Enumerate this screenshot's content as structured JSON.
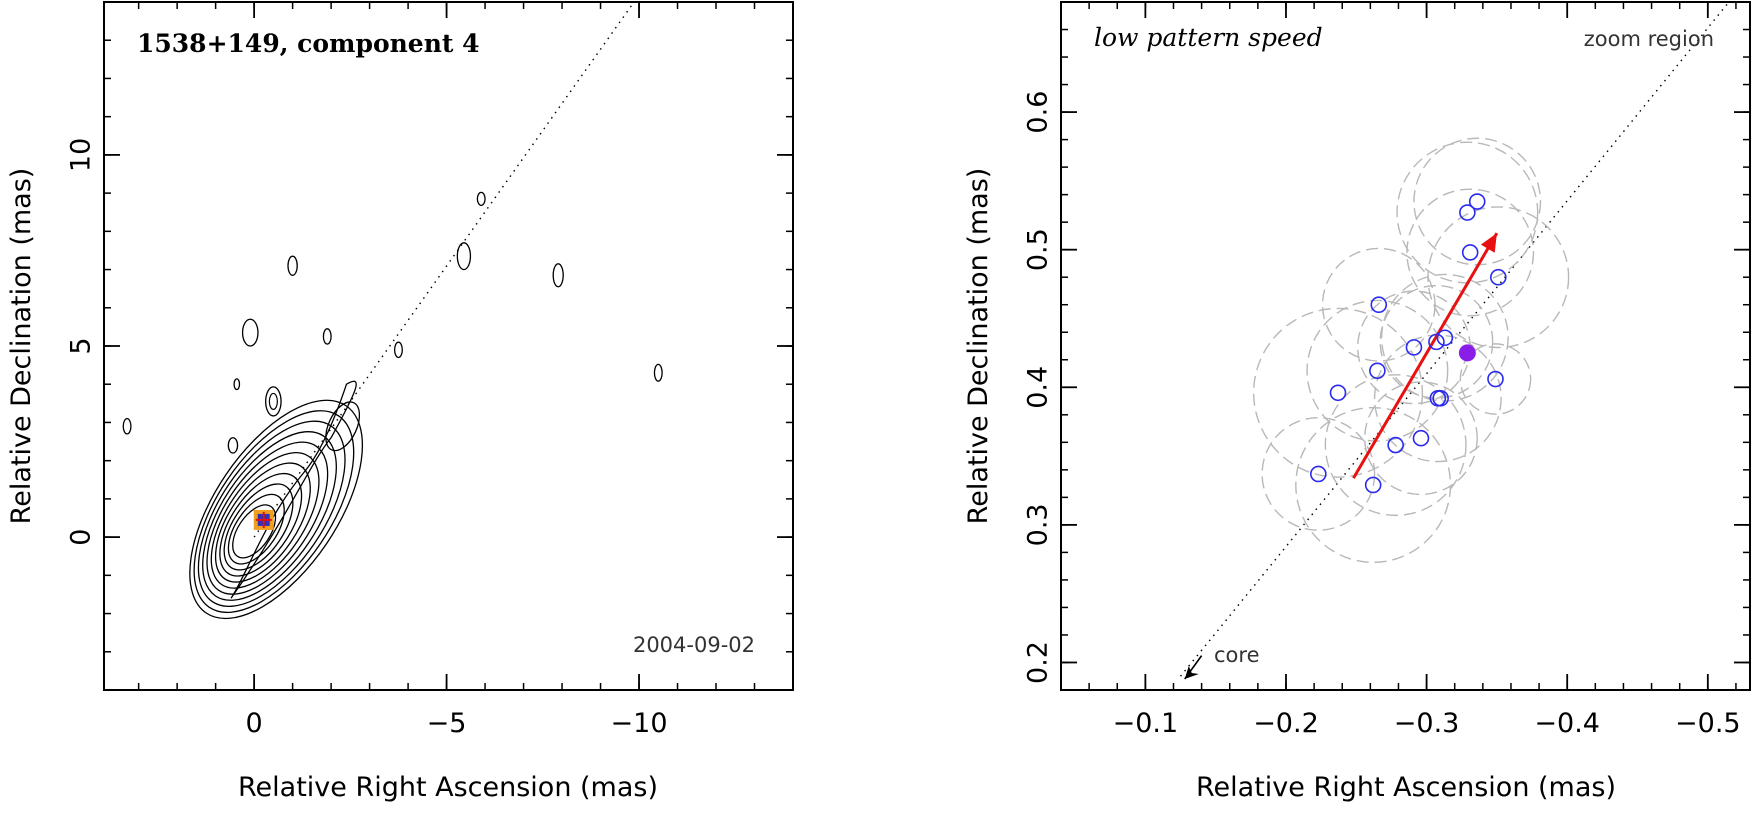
{
  "chart_data": [
    {
      "type": "contour",
      "title": "1538+149, component 4",
      "date": "2004-09-02",
      "xlabel": "Relative Right Ascension (mas)",
      "ylabel": "Relative Declination (mas)",
      "xlim": [
        3.9,
        -14.0
      ],
      "ylim": [
        -4.0,
        14.0
      ],
      "xticks": [
        0,
        -5,
        -10
      ],
      "xtick_labels": [
        "0",
        "−5",
        "−10"
      ],
      "yticks": [
        0,
        5,
        10
      ],
      "ytick_labels": [
        "0",
        "5",
        "10"
      ],
      "jet_axis": {
        "x": [
          0,
          -9.8
        ],
        "y": [
          0,
          13.9
        ]
      },
      "component_marker": {
        "x": -0.25,
        "y": 0.45
      },
      "main_contour_levels": 11,
      "blobs": [
        {
          "x": -0.5,
          "y": 3.55,
          "rx": 0.2,
          "ry": 0.38
        },
        {
          "x": 0.1,
          "y": 5.35,
          "rx": 0.2,
          "ry": 0.35
        },
        {
          "x": -1.9,
          "y": 5.25,
          "rx": 0.1,
          "ry": 0.2
        },
        {
          "x": -3.75,
          "y": 4.9,
          "rx": 0.1,
          "ry": 0.2
        },
        {
          "x": -5.45,
          "y": 7.35,
          "rx": 0.17,
          "ry": 0.35
        },
        {
          "x": -5.9,
          "y": 8.85,
          "rx": 0.1,
          "ry": 0.17
        },
        {
          "x": -7.9,
          "y": 6.85,
          "rx": 0.13,
          "ry": 0.3
        },
        {
          "x": -1.0,
          "y": 7.1,
          "rx": 0.12,
          "ry": 0.25
        },
        {
          "x": -10.5,
          "y": 4.3,
          "rx": 0.1,
          "ry": 0.22
        },
        {
          "x": 0.55,
          "y": 2.4,
          "rx": 0.12,
          "ry": 0.2
        },
        {
          "x": 3.3,
          "y": 2.9,
          "rx": 0.1,
          "ry": 0.2
        },
        {
          "x": 0.45,
          "y": 4.0,
          "rx": 0.07,
          "ry": 0.14
        }
      ]
    },
    {
      "type": "scatter",
      "title": "low pattern speed",
      "annotation_top_right": "zoom region",
      "annotation_core": "core",
      "xlabel": "Relative Right Ascension (mas)",
      "ylabel": "Relative Declination (mas)",
      "xlim": [
        -0.04,
        -0.53
      ],
      "ylim": [
        0.18,
        0.68
      ],
      "xticks": [
        -0.1,
        -0.2,
        -0.3,
        -0.4,
        -0.5
      ],
      "xtick_labels": [
        "−0.1",
        "−0.2",
        "−0.3",
        "−0.4",
        "−0.5"
      ],
      "yticks": [
        0.2,
        0.3,
        0.4,
        0.5,
        0.6
      ],
      "ytick_labels": [
        "0.2",
        "0.3",
        "0.4",
        "0.5",
        "0.6"
      ],
      "points": [
        {
          "x": -0.329,
          "y": 0.527
        },
        {
          "x": -0.336,
          "y": 0.535
        },
        {
          "x": -0.331,
          "y": 0.498
        },
        {
          "x": -0.351,
          "y": 0.48
        },
        {
          "x": -0.266,
          "y": 0.46
        },
        {
          "x": -0.313,
          "y": 0.436
        },
        {
          "x": -0.307,
          "y": 0.433
        },
        {
          "x": -0.291,
          "y": 0.429
        },
        {
          "x": -0.265,
          "y": 0.412
        },
        {
          "x": -0.349,
          "y": 0.406
        },
        {
          "x": -0.237,
          "y": 0.396
        },
        {
          "x": -0.308,
          "y": 0.392
        },
        {
          "x": -0.31,
          "y": 0.392
        },
        {
          "x": -0.296,
          "y": 0.363
        },
        {
          "x": -0.278,
          "y": 0.358
        },
        {
          "x": -0.223,
          "y": 0.337
        },
        {
          "x": -0.262,
          "y": 0.329
        }
      ],
      "uncertainty_circles": [
        {
          "x": -0.329,
          "y": 0.527,
          "r": 0.05
        },
        {
          "x": -0.336,
          "y": 0.535,
          "r": 0.045
        },
        {
          "x": -0.331,
          "y": 0.498,
          "r": 0.045
        },
        {
          "x": -0.351,
          "y": 0.48,
          "r": 0.05
        },
        {
          "x": -0.266,
          "y": 0.46,
          "r": 0.04
        },
        {
          "x": -0.313,
          "y": 0.436,
          "r": 0.045
        },
        {
          "x": -0.307,
          "y": 0.433,
          "r": 0.04
        },
        {
          "x": -0.291,
          "y": 0.429,
          "r": 0.04
        },
        {
          "x": -0.265,
          "y": 0.412,
          "r": 0.05
        },
        {
          "x": -0.349,
          "y": 0.406,
          "r": 0.025
        },
        {
          "x": -0.237,
          "y": 0.396,
          "r": 0.06
        },
        {
          "x": -0.308,
          "y": 0.392,
          "r": 0.045
        },
        {
          "x": -0.296,
          "y": 0.363,
          "r": 0.04
        },
        {
          "x": -0.278,
          "y": 0.358,
          "r": 0.05
        },
        {
          "x": -0.223,
          "y": 0.337,
          "r": 0.04
        },
        {
          "x": -0.262,
          "y": 0.329,
          "r": 0.055
        }
      ],
      "mean_point": {
        "x": -0.329,
        "y": 0.425
      },
      "motion_vector": {
        "from": {
          "x": -0.248,
          "y": 0.334
        },
        "to": {
          "x": -0.35,
          "y": 0.512
        }
      },
      "jet_axis": {
        "from": {
          "x": -0.125,
          "y": 0.19
        },
        "to": {
          "x": -0.515,
          "y": 0.68
        }
      },
      "core_arrow": {
        "from": {
          "x": -0.14,
          "y": 0.205
        },
        "to": {
          "x": -0.128,
          "y": 0.188
        }
      },
      "colors": {
        "points": "#2a2af0",
        "mean": "#8a1ee8",
        "vector": "#e81010",
        "circles": "#b8b8b8"
      }
    }
  ]
}
